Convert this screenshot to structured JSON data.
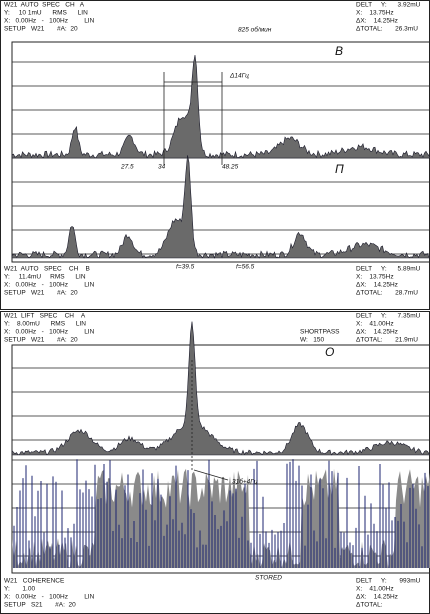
{
  "panels": [
    {
      "header": {
        "left": [
          "W21  AUTO  SPEC   CH   A",
          "Y:     10 1mU      RMS      LIN",
          "X:   0.00Hz   -   100Hz         LIN",
          "SETUP   W21       #A:  20"
        ],
        "middle": [
          "825 об/мин"
        ],
        "right": [
          "DELT     Y:      3.92mU",
          "X:    13.75Hz",
          "ΔX:    14.25Hz",
          "ΔTOTAL:       26.3mU"
        ]
      },
      "plot_labels": {
        "upper": "В",
        "lower": "П",
        "span": "Δ14Гц",
        "marks": [
          "27.5",
          "34",
          "48.25"
        ],
        "freqs": [
          "f=39.5",
          "f=56.5"
        ]
      },
      "footer": {
        "left": [
          "W21  AUTO   SPEC    CH    B",
          "Y:     11.4mU     RMS      LIN",
          "X:   0.00Hz   -   100Hz         LIN",
          "SETUP   W21       #A:  20"
        ],
        "right": [
          "DELT     Y:      5.89mU",
          "X:    13.75Hz",
          "ΔX:    14.25Hz",
          "ΔTOTAL:       28.7mU"
        ]
      }
    },
    {
      "header": {
        "left": [
          "W21  LIFT   SPEC    CH    A",
          "Y:    8.00mU      RMS      LIN",
          "X:   0.00Hz   -   100Hz         LIN",
          "SETUP   W21       #A:  20"
        ],
        "middle": [
          "SHORTPASS",
          "W:   150"
        ],
        "right": [
          "DELT     Y:      7.35mU",
          "X:    41.00Hz",
          "ΔX:    14.25Hz",
          "ΔTOTAL:       21.9mU"
        ]
      },
      "plot_labels": {
        "upper": "О",
        "span": "31б+4Гц",
        "status": "STORED"
      },
      "footer": {
        "left": [
          "W21   COHERENCE",
          "Y:       1.00",
          "X:   0.00Hz   -   100Hz         LIN",
          "SETUP   S21       #A:  20"
        ],
        "right": [
          "DELT     Y:       993mU",
          "X:    41.00Hz",
          "ΔX:    14.25Hz",
          "ΔTOTAL:"
        ]
      }
    }
  ]
}
